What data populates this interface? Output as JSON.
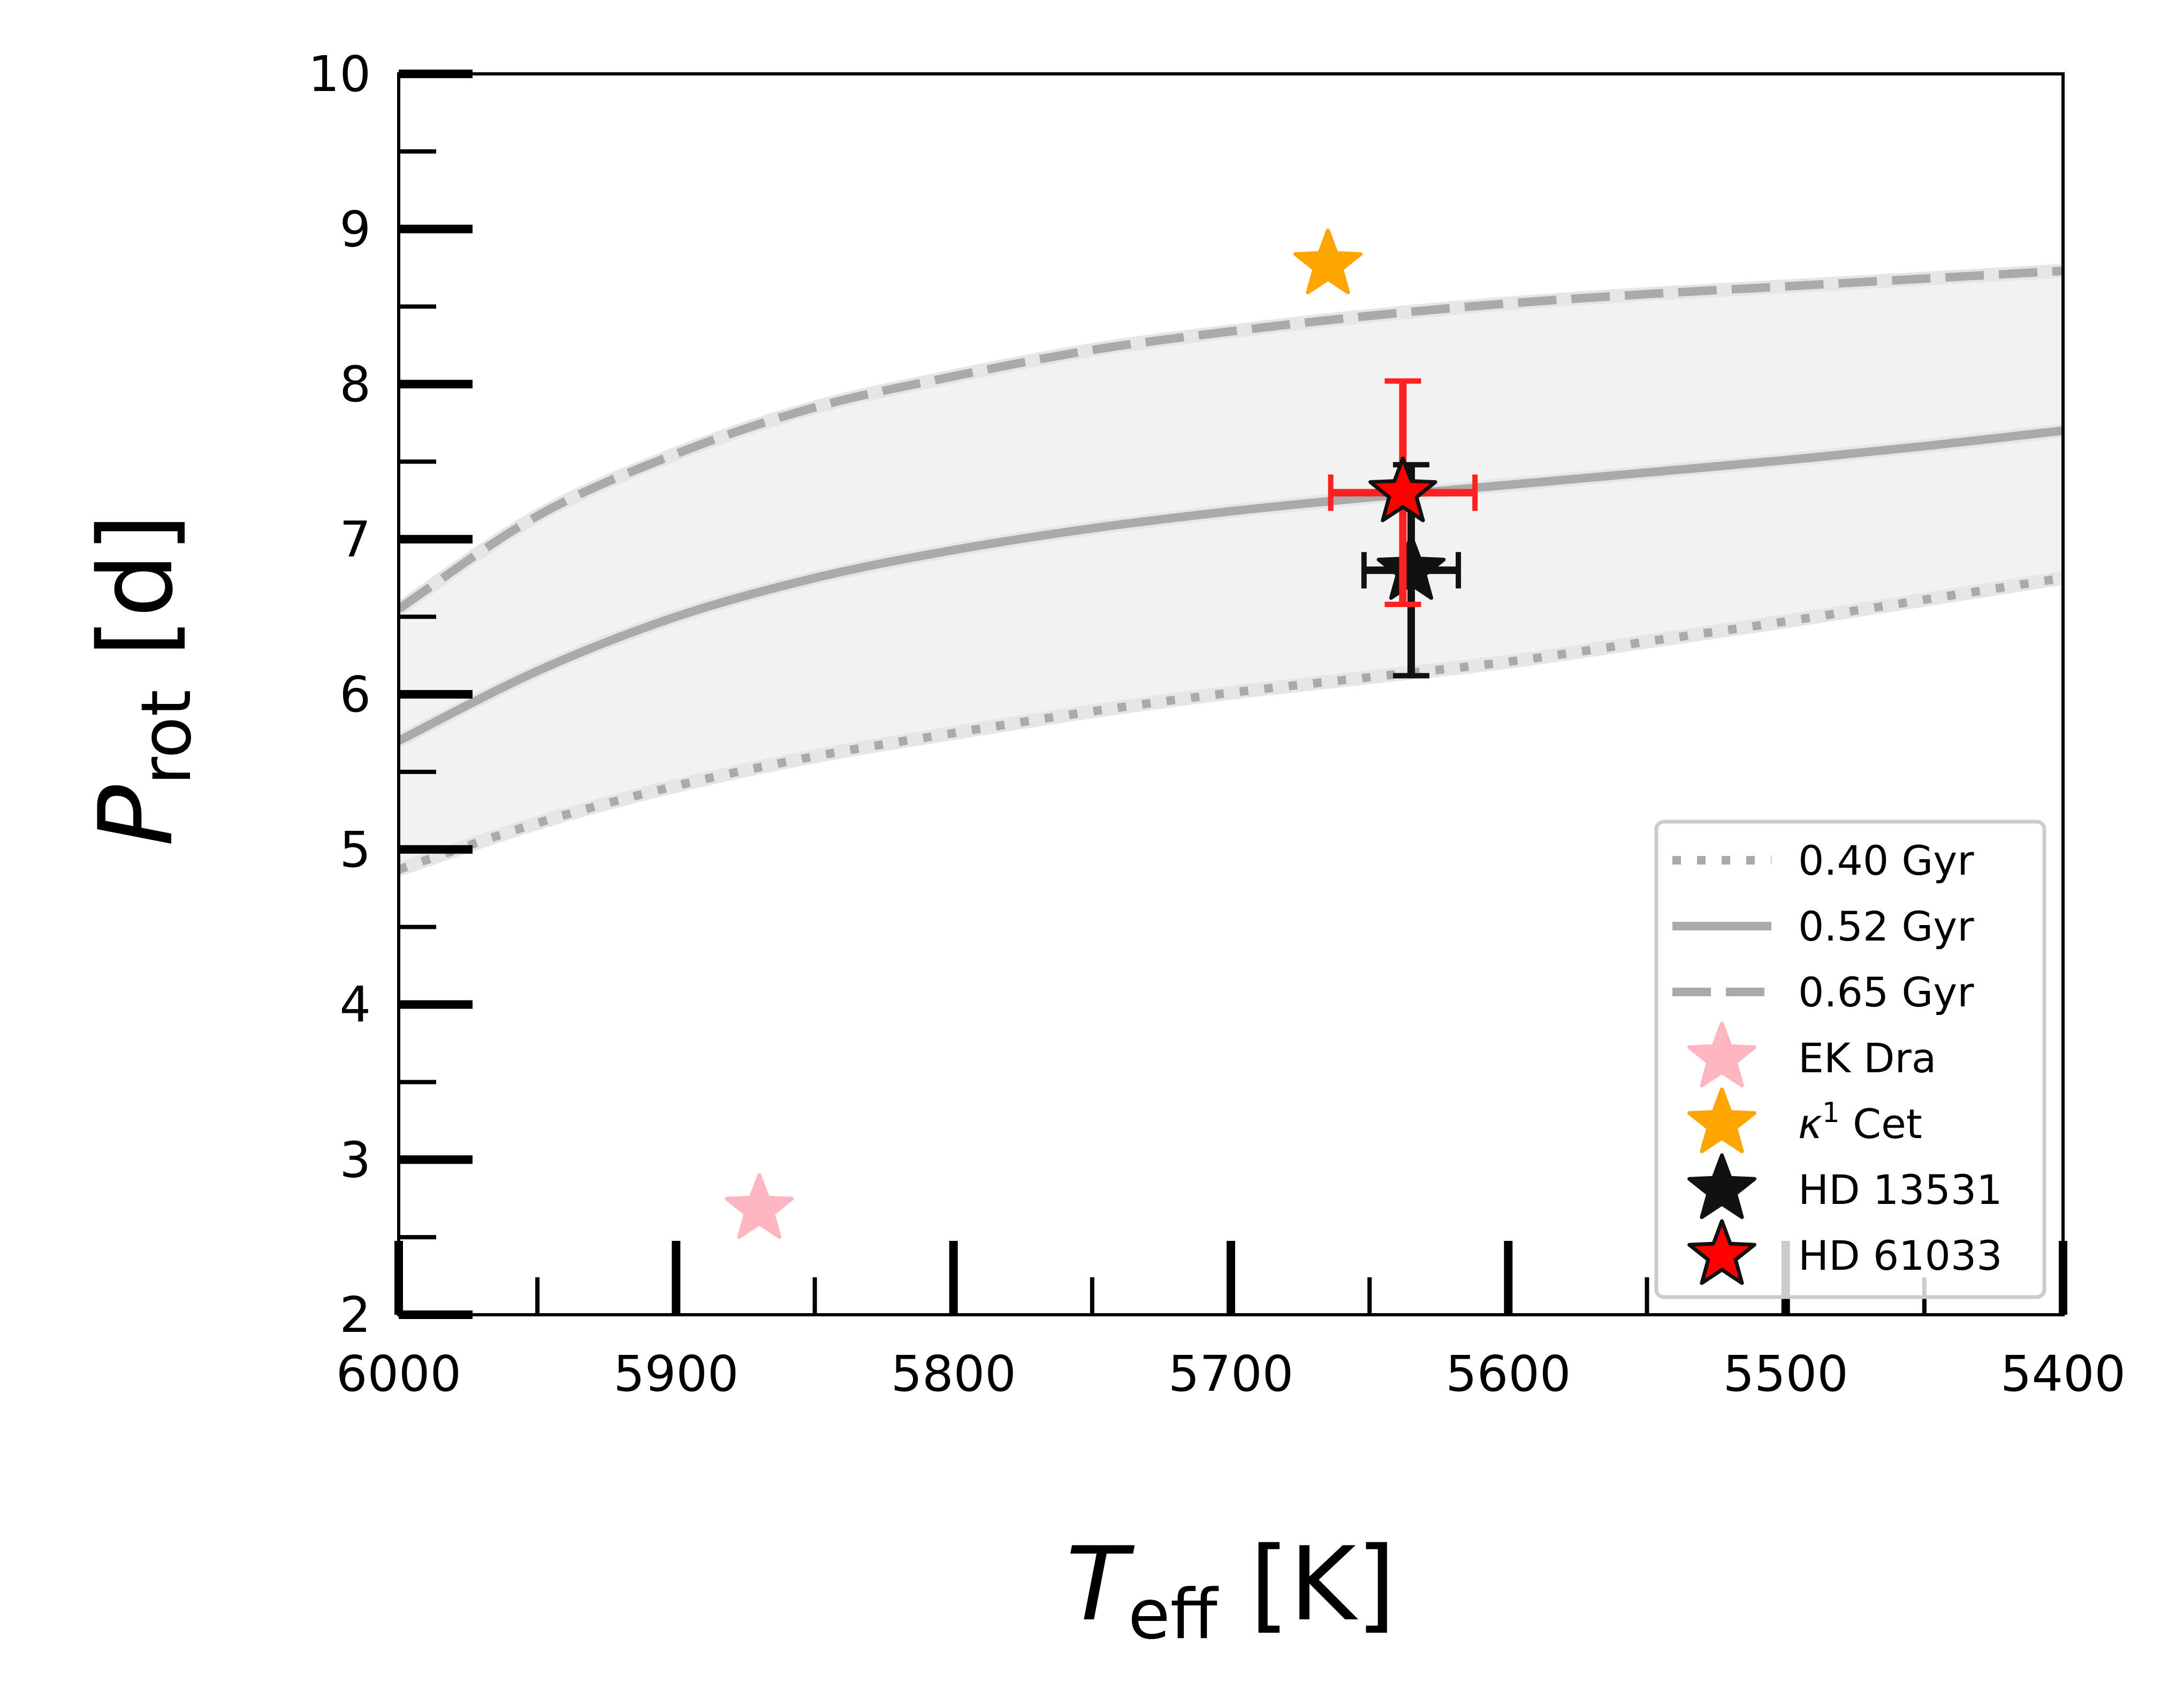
{
  "chart_data": {
    "type": "line",
    "xlabel": "T_eff [K]",
    "xlabel_parts": {
      "main": "T",
      "sub": "eff",
      "unit": "[K]"
    },
    "ylabel": "P_rot [d]",
    "ylabel_parts": {
      "main": "P",
      "sub": "rot",
      "unit": "[d]"
    },
    "xlim": [
      6000,
      5400
    ],
    "ylim": [
      2,
      10
    ],
    "x_ticks": [
      6000,
      5900,
      5800,
      5700,
      5600,
      5500,
      5400
    ],
    "x_tick_labels": [
      "6000",
      "5900",
      "5800",
      "5700",
      "5600",
      "5500",
      "5400"
    ],
    "y_ticks": [
      2,
      3,
      4,
      5,
      6,
      7,
      8,
      9,
      10
    ],
    "y_tick_labels": [
      "2",
      "3",
      "4",
      "5",
      "6",
      "7",
      "8",
      "9",
      "10"
    ],
    "grid": false,
    "legend_position": "bottom-right",
    "band": {
      "between": [
        "0.40 Gyr",
        "0.65 Gyr"
      ],
      "color": "#f2f2f2"
    },
    "series": [
      {
        "name": "0.40 Gyr",
        "style": "dotted",
        "color": "#aaaaaa",
        "x": [
          6000,
          5950,
          5900,
          5850,
          5800,
          5750,
          5700,
          5650,
          5600,
          5550,
          5500,
          5450,
          5400
        ],
        "y": [
          4.87,
          5.17,
          5.41,
          5.6,
          5.75,
          5.89,
          6.01,
          6.11,
          6.21,
          6.34,
          6.47,
          6.61,
          6.75
        ]
      },
      {
        "name": "0.52 Gyr",
        "style": "solid",
        "color": "#aaaaaa",
        "x": [
          6000,
          5950,
          5900,
          5850,
          5800,
          5750,
          5700,
          5650,
          5600,
          5550,
          5500,
          5450,
          5400
        ],
        "y": [
          5.7,
          6.15,
          6.5,
          6.75,
          6.93,
          7.07,
          7.18,
          7.27,
          7.35,
          7.43,
          7.51,
          7.6,
          7.7
        ]
      },
      {
        "name": "0.65 Gyr",
        "style": "dashed",
        "color": "#aaaaaa",
        "x": [
          6000,
          5950,
          5900,
          5850,
          5800,
          5750,
          5700,
          5650,
          5600,
          5550,
          5500,
          5450,
          5400
        ],
        "y": [
          6.55,
          7.15,
          7.55,
          7.85,
          8.05,
          8.22,
          8.34,
          8.44,
          8.52,
          8.58,
          8.63,
          8.68,
          8.73
        ]
      }
    ],
    "stars": [
      {
        "name": "EK Dra",
        "color": "#ffb6c1",
        "edge": "#ffb6c1",
        "teff": 5870,
        "prot": 2.68
      },
      {
        "name": "κ¹ Cet",
        "label_main": "κ",
        "label_sup": "1",
        "label_rest": " Cet",
        "color": "#ffa500",
        "edge": "#ffa500",
        "teff": 5665,
        "prot": 8.77
      },
      {
        "name": "HD 13531",
        "color": "#111111",
        "edge": "#111111",
        "teff": 5635,
        "prot": 6.8,
        "xerr": 17,
        "yerr_low": 0.68,
        "yerr_high": 0.68,
        "err_color": "#111111"
      },
      {
        "name": "HD 61033",
        "color": "#ff0000",
        "edge": "#111111",
        "teff": 5638,
        "prot": 7.3,
        "xerr": 26,
        "yerr_low": 0.72,
        "yerr_high": 0.72,
        "err_color": "#ff2020"
      }
    ]
  }
}
